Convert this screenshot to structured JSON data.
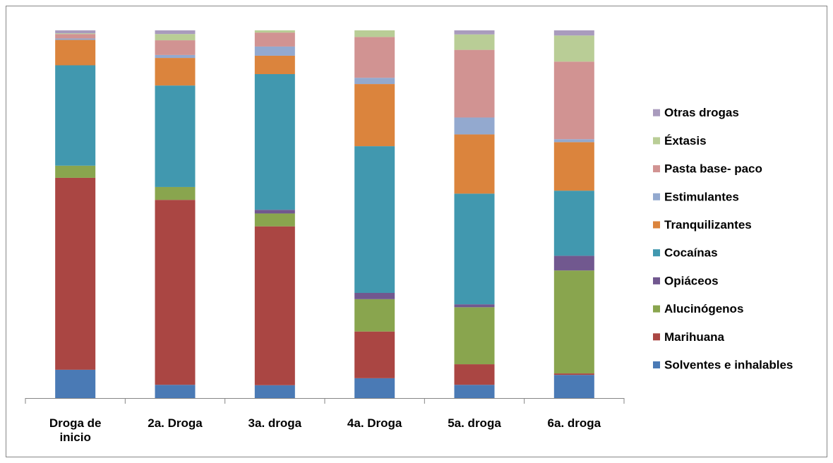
{
  "chart_data": {
    "type": "stacked_bar_100",
    "categories": [
      "Droga de inicio",
      "2a. Droga",
      "3a. droga",
      "4a. Droga",
      "5a. droga",
      "6a. droga"
    ],
    "series": [
      {
        "name": "Solventes e inhalables",
        "color": "#4a7ab5",
        "values": [
          7.7,
          3.6,
          3.5,
          5.4,
          3.6,
          6.3
        ]
      },
      {
        "name": "Marihuana",
        "color": "#aa4643",
        "values": [
          52.2,
          50.3,
          43.2,
          12.7,
          5.6,
          0.4
        ]
      },
      {
        "name": "Alucinógenos",
        "color": "#89a54e",
        "values": [
          3.3,
          3.5,
          3.5,
          8.8,
          15.5,
          28.0
        ]
      },
      {
        "name": "Opiáceos",
        "color": "#71588f",
        "values": [
          0,
          0,
          1.0,
          1.7,
          0.8,
          4.0
        ]
      },
      {
        "name": "Cocaínas",
        "color": "#4198af",
        "values": [
          27.3,
          27.6,
          36.9,
          39.9,
          30.1,
          17.7
        ]
      },
      {
        "name": "Tranquilizantes",
        "color": "#db843d",
        "values": [
          6.9,
          7.5,
          5.0,
          16.9,
          16.1,
          13.2
        ]
      },
      {
        "name": "Estimulantes",
        "color": "#93a9cf",
        "values": [
          0.4,
          0.8,
          2.5,
          1.7,
          4.6,
          0.8
        ]
      },
      {
        "name": "Pasta base- paco",
        "color": "#d19392",
        "values": [
          1.2,
          4.0,
          3.8,
          11.1,
          18.4,
          21.1
        ]
      },
      {
        "name": "Éxtasis",
        "color": "#b9cd96",
        "values": [
          0.2,
          1.7,
          0.6,
          1.8,
          4.2,
          7.1
        ]
      },
      {
        "name": "Otras drogas",
        "color": "#a99bbd",
        "values": [
          0.8,
          1.0,
          0,
          0,
          1.1,
          1.4
        ]
      }
    ],
    "ylim": [
      0,
      100
    ],
    "legend": "right"
  }
}
